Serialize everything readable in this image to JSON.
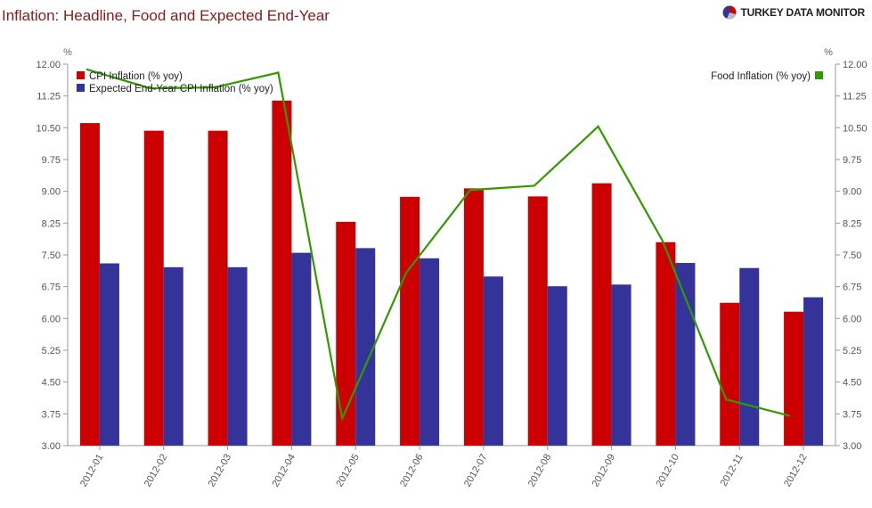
{
  "header": {
    "title": "Inflation: Headline, Food and Expected End-Year",
    "brand": "TURKEY DATA MONITOR"
  },
  "colors": {
    "cpi": "#cc0000",
    "expected": "#333399",
    "food": "#339900",
    "title": "#8b1a1a"
  },
  "chart_data": {
    "type": "bar",
    "title": "Inflation: Headline, Food and Expected End-Year",
    "categories": [
      "2012-01",
      "2012-02",
      "2012-03",
      "2012-04",
      "2012-05",
      "2012-06",
      "2012-07",
      "2012-08",
      "2012-09",
      "2012-10",
      "2012-11",
      "2012-12"
    ],
    "series": [
      {
        "name": "CPI Inflation (% yoy)",
        "type": "bar",
        "axis": "left",
        "values": [
          10.61,
          10.43,
          10.43,
          11.14,
          8.28,
          8.87,
          9.07,
          8.88,
          9.19,
          7.8,
          6.37,
          6.16
        ]
      },
      {
        "name": "Expected End-Year CPI Inflation (% yoy)",
        "type": "bar",
        "axis": "left",
        "values": [
          7.3,
          7.21,
          7.21,
          7.55,
          7.66,
          7.42,
          6.99,
          6.76,
          6.8,
          7.31,
          7.19,
          6.5
        ]
      },
      {
        "name": "Food Inflation (% yoy)",
        "type": "line",
        "axis": "right",
        "values": [
          11.88,
          11.43,
          11.45,
          11.8,
          3.64,
          7.08,
          9.03,
          9.13,
          10.53,
          7.85,
          4.09,
          3.7
        ]
      }
    ],
    "ylim": [
      3.0,
      12.0
    ],
    "y_ticks": [
      "3.00",
      "3.75",
      "4.50",
      "5.25",
      "6.00",
      "6.75",
      "7.50",
      "8.25",
      "9.00",
      "9.75",
      "10.50",
      "11.25",
      "12.00"
    ],
    "ylabel_left": "%",
    "ylabel_right": "%",
    "grid": false,
    "legend_left": "top-left",
    "legend_right": "top-right"
  }
}
